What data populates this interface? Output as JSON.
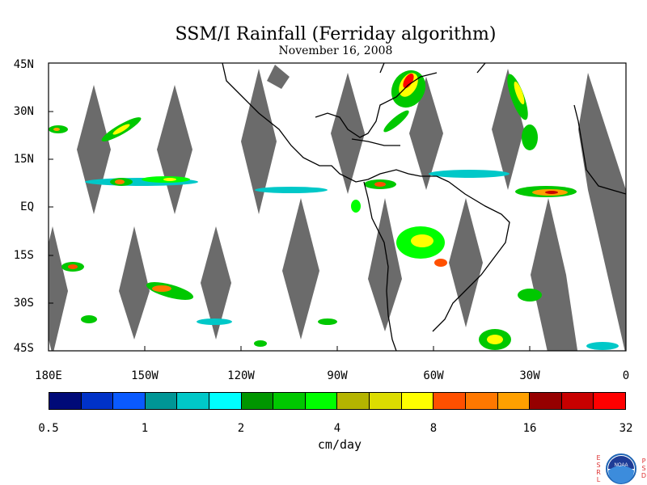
{
  "title": "SSM/I Rainfall (Ferriday algorithm)",
  "subtitle": "November 16, 2008",
  "map": {
    "lat_labels": [
      "45N",
      "30N",
      "15N",
      "EQ",
      "15S",
      "30S",
      "45S"
    ],
    "lon_labels": [
      "180E",
      "150W",
      "120W",
      "90W",
      "60W",
      "30W",
      "0"
    ],
    "lon_range": [
      -180,
      0
    ],
    "lat_range": [
      -45,
      45
    ],
    "no_data_color": "#6b6b6b",
    "land_outline_color": "#000000"
  },
  "colorbar": {
    "colors": [
      "#000a78",
      "#0032c8",
      "#0a5aff",
      "#009696",
      "#00c8c8",
      "#00ffff",
      "#009600",
      "#00c800",
      "#00ff00",
      "#b4b400",
      "#dcdc00",
      "#ffff00",
      "#ff5000",
      "#ff7800",
      "#ffa000",
      "#960000",
      "#c80000",
      "#ff0000"
    ],
    "tick_labels": [
      "0.5",
      "1",
      "2",
      "4",
      "8",
      "16",
      "32"
    ],
    "unit": "cm/day",
    "scale": "log2"
  },
  "logo": {
    "left_letters": "ESRL",
    "right_letters": "PSD",
    "center_text": "NOAA"
  }
}
